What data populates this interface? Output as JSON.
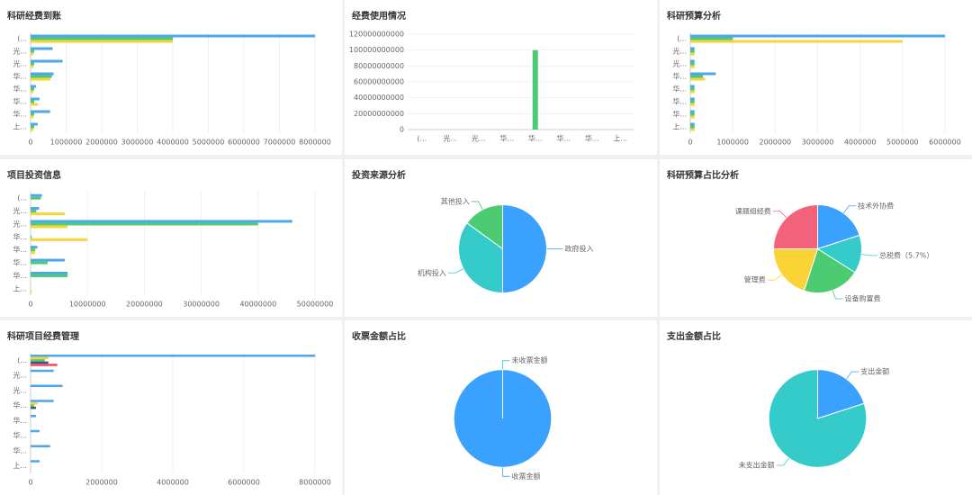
{
  "chart_data": [
    {
      "type": "hbar",
      "title": "科研经费到账",
      "categories": [
        "(...",
        "光...",
        "光...",
        "华...",
        "华...",
        "华...",
        "华...",
        "上..."
      ],
      "series": [
        {
          "color": "#4ea7e8",
          "values": [
            8000000,
            620000,
            900000,
            650000,
            150000,
            250000,
            550000,
            200000
          ]
        },
        {
          "color": "#4dcb73",
          "values": [
            4000000,
            100000,
            100000,
            600000,
            100000,
            100000,
            100000,
            100000
          ]
        },
        {
          "color": "#fad337",
          "values": [
            4000000,
            80000,
            80000,
            550000,
            80000,
            200000,
            80000,
            80000
          ]
        }
      ],
      "xlim": [
        0,
        8000000
      ],
      "xticks": [
        0,
        1000000,
        2000000,
        3000000,
        4000000,
        5000000,
        6000000,
        7000000,
        8000000
      ],
      "grid": true
    },
    {
      "type": "bar",
      "title": "经费使用情况",
      "categories": [
        "(...",
        "光...",
        "光...",
        "华...",
        "华...",
        "华...",
        "华...",
        "上..."
      ],
      "series": [
        {
          "color": "#4dcb73",
          "values": [
            0,
            0,
            0,
            0,
            100000000000,
            0,
            0,
            0
          ]
        }
      ],
      "ylim": [
        0,
        120000000000
      ],
      "yticks": [
        0,
        20000000000,
        40000000000,
        60000000000,
        80000000000,
        100000000000,
        120000000000
      ],
      "grid": true
    },
    {
      "type": "hbar",
      "title": "科研预算分析",
      "categories": [
        "(...",
        "光...",
        "光...",
        "华...",
        "华...",
        "华...",
        "华...",
        "上..."
      ],
      "series": [
        {
          "color": "#4ea7e8",
          "values": [
            6000000,
            100000,
            100000,
            600000,
            100000,
            100000,
            100000,
            100000
          ]
        },
        {
          "color": "#4dcb73",
          "values": [
            1000000,
            100000,
            100000,
            300000,
            100000,
            100000,
            100000,
            100000
          ]
        },
        {
          "color": "#fad337",
          "values": [
            5000000,
            100000,
            100000,
            350000,
            100000,
            100000,
            100000,
            100000
          ]
        }
      ],
      "xlim": [
        0,
        6000000
      ],
      "xticks": [
        0,
        1000000,
        2000000,
        3000000,
        4000000,
        5000000,
        6000000
      ],
      "grid": true
    },
    {
      "type": "hbar",
      "title": "项目投资信息",
      "categories": [
        "(...",
        "光...",
        "光...",
        "华...",
        "华...",
        "华...",
        "华...",
        "上..."
      ],
      "series": [
        {
          "color": "#4ea7e8",
          "values": [
            2000000,
            1500000,
            46000000,
            0,
            1200000,
            6000000,
            6500000,
            0
          ]
        },
        {
          "color": "#4dcb73",
          "values": [
            1800000,
            1000000,
            40000000,
            200000,
            800000,
            3000000,
            6500000,
            0
          ]
        },
        {
          "color": "#fad337",
          "values": [
            0,
            6000000,
            6500000,
            10000000,
            800000,
            0,
            0,
            200000
          ]
        }
      ],
      "xlim": [
        0,
        50000000
      ],
      "xticks": [
        0,
        10000000,
        20000000,
        30000000,
        40000000,
        50000000
      ],
      "grid": true
    },
    {
      "type": "pie",
      "title": "投资来源分析",
      "categories": [
        "政府投入",
        "机构投入",
        "其他投入"
      ],
      "values": [
        50,
        35,
        15
      ],
      "colors": [
        "#3ba1ff",
        "#36cbcb",
        "#4dcb73"
      ]
    },
    {
      "type": "pie",
      "title": "科研预算占比分析",
      "categories": [
        "技术外协费",
        "总税费（5.7%）",
        "设备购置费",
        "管理费",
        "课题组经费"
      ],
      "values": [
        20,
        14,
        21,
        20,
        25
      ],
      "colors": [
        "#3ba1ff",
        "#36cbcb",
        "#4dcb73",
        "#fad337",
        "#f2637b"
      ]
    },
    {
      "type": "hbar",
      "title": "科研项目经费管理",
      "categories": [
        "(...",
        "光...",
        "光...",
        "华...",
        "华...",
        "华...",
        "华...",
        "上..."
      ],
      "series": [
        {
          "color": "#4ea7e8",
          "values": [
            8000000,
            650000,
            900000,
            650000,
            150000,
            250000,
            550000,
            250000
          ]
        },
        {
          "color": "#fad337",
          "values": [
            500000,
            0,
            0,
            200000,
            0,
            0,
            0,
            0
          ]
        },
        {
          "color": "#4dcb73",
          "values": [
            400000,
            0,
            0,
            100000,
            0,
            0,
            0,
            0
          ]
        },
        {
          "color": "#435188",
          "values": [
            500000,
            0,
            0,
            150000,
            0,
            0,
            0,
            0
          ]
        },
        {
          "color": "#f04864",
          "values": [
            750000,
            0,
            0,
            0,
            0,
            0,
            0,
            0
          ]
        }
      ],
      "xlim": [
        0,
        8000000
      ],
      "xticks": [
        0,
        2000000,
        4000000,
        6000000,
        8000000
      ],
      "grid": true
    },
    {
      "type": "pie",
      "title": "收票金额占比",
      "categories": [
        "收票金额",
        "未收票金额"
      ],
      "values": [
        100,
        0
      ],
      "colors": [
        "#3ba1ff",
        "#36cbcb"
      ]
    },
    {
      "type": "pie",
      "title": "支出金额占比",
      "categories": [
        "支出金额",
        "未支出金额"
      ],
      "values": [
        20,
        80
      ],
      "colors": [
        "#3ba1ff",
        "#36cbcb"
      ]
    }
  ]
}
